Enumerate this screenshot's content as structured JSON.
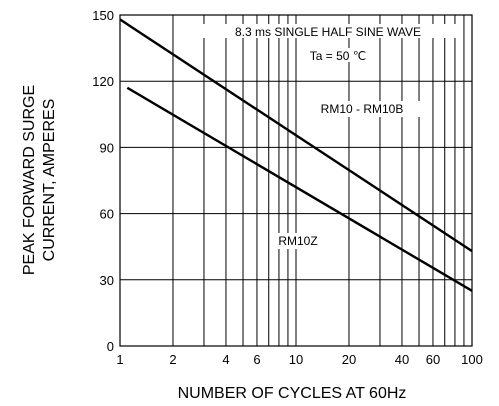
{
  "chart_data": {
    "type": "line",
    "x_scale": "log",
    "xlim": [
      1,
      100
    ],
    "ylim": [
      0,
      150
    ],
    "grid": true,
    "xlabel": "NUMBER OF CYCLES AT 60Hz",
    "ylabel_lines": [
      "PEAK FORWARD SURGE",
      "CURRENT, AMPERES"
    ],
    "x_ticks": [
      1,
      2,
      4,
      6,
      10,
      20,
      40,
      60,
      100
    ],
    "x_grid": [
      1,
      2,
      3,
      4,
      5,
      6,
      7,
      8,
      9,
      10,
      20,
      30,
      40,
      50,
      60,
      70,
      80,
      90,
      100
    ],
    "y_ticks": [
      0,
      30,
      60,
      90,
      120,
      150
    ],
    "annotations": [
      "8.3 ms SINGLE HALF SINE WAVE",
      "Ta = 50 ℃"
    ],
    "series": [
      {
        "name": "RM10 - RM10B",
        "x": [
          1,
          100
        ],
        "y": [
          148,
          43
        ]
      },
      {
        "name": "RM10Z",
        "x": [
          1.1,
          100
        ],
        "y": [
          117,
          25
        ]
      }
    ]
  }
}
